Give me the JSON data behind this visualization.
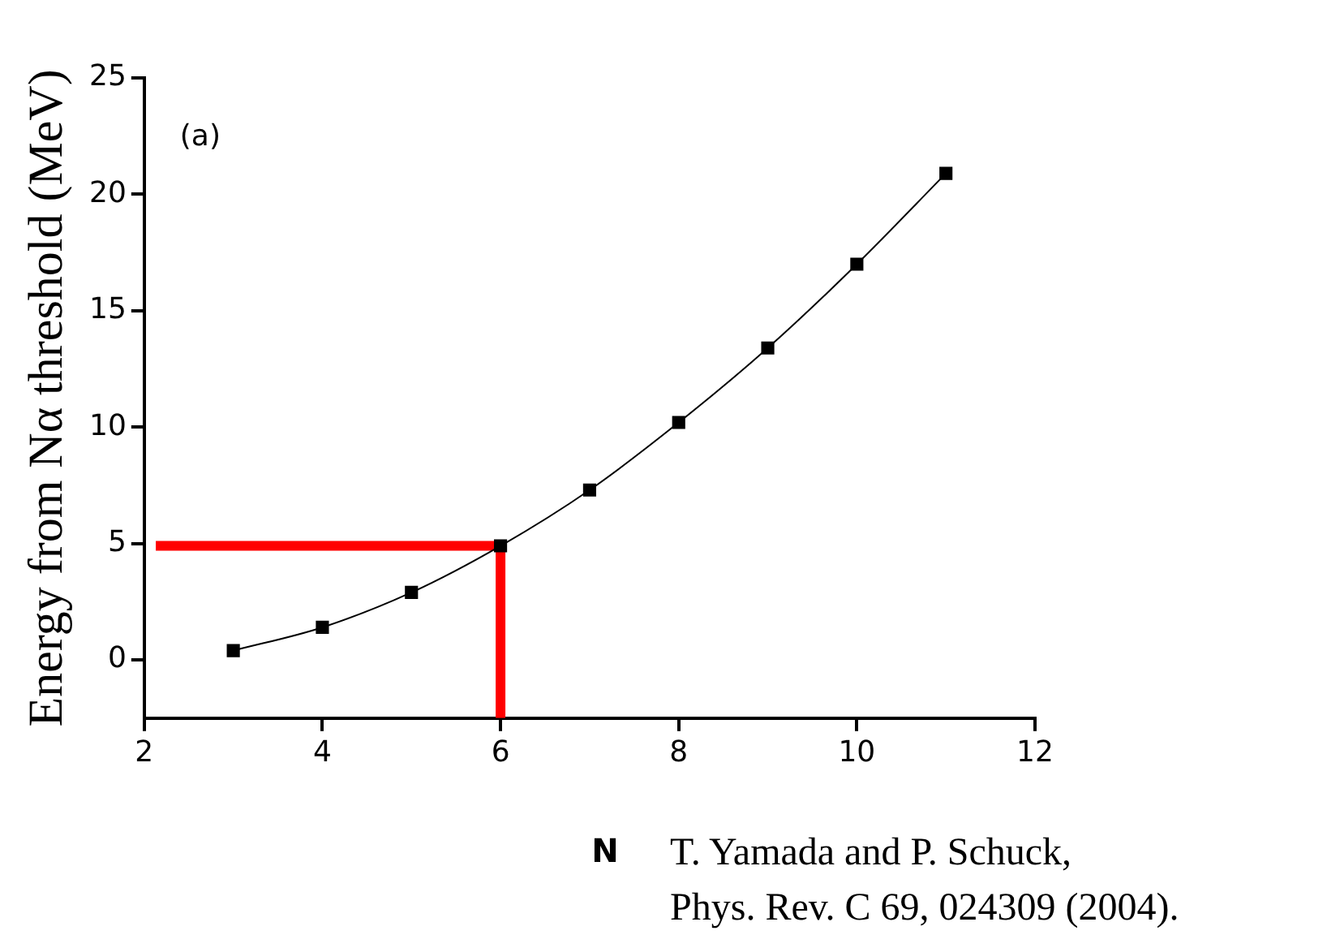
{
  "chart_data": {
    "type": "line",
    "ylabel": "Energy from Nα threshold (MeV)",
    "xlabel": "N",
    "xlim": [
      2,
      12
    ],
    "xticks": [
      2,
      4,
      6,
      8,
      10,
      12
    ],
    "ylim": [
      -2.5,
      25
    ],
    "yticks": [
      0,
      5,
      10,
      15,
      20,
      25
    ],
    "grid": false,
    "legend": false,
    "series": [
      {
        "color": "#000000",
        "marker": "square",
        "x": [
          3,
          4,
          5,
          6,
          7,
          8,
          9,
          10,
          11
        ],
        "values": [
          0.4,
          1.4,
          2.9,
          4.9,
          7.3,
          10.2,
          13.4,
          17.0,
          20.9
        ]
      },
      {
        "color": "#ff0000",
        "marker": "none",
        "x": [
          2.13,
          6,
          6
        ],
        "values": [
          4.9,
          4.9,
          -2.5
        ]
      }
    ],
    "annotations": [
      "(a)",
      "T. Yamada and P. Schuck,\nPhys. Rev. C 69, 024309 (2004)."
    ]
  }
}
